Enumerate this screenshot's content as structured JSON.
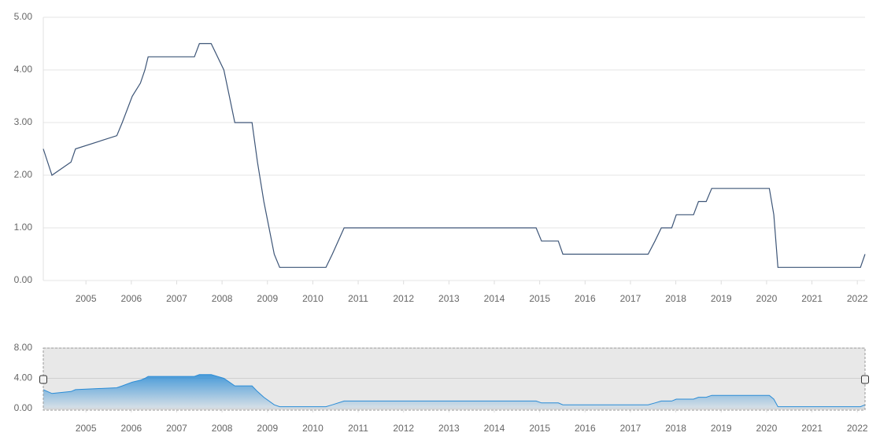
{
  "chart_data": {
    "type": "line",
    "x": [
      2004.06,
      2004.25,
      2004.67,
      2004.77,
      2005.68,
      2005.8,
      2006.02,
      2006.2,
      2006.3,
      2006.37,
      2007.39,
      2007.5,
      2007.76,
      2008.04,
      2008.16,
      2008.28,
      2008.66,
      2008.78,
      2008.92,
      2009.15,
      2009.27,
      2010.29,
      2010.43,
      2010.69,
      2014.92,
      2015.04,
      2015.41,
      2015.51,
      2017.39,
      2017.54,
      2017.68,
      2017.91,
      2018.01,
      2018.39,
      2018.5,
      2018.67,
      2018.79,
      2020.06,
      2020.16,
      2020.25,
      2022.07,
      2022.17
    ],
    "values": [
      2.5,
      2.0,
      2.25,
      2.5,
      2.75,
      3.0,
      3.5,
      3.75,
      4.0,
      4.25,
      4.25,
      4.5,
      4.5,
      4.0,
      3.5,
      3.0,
      3.0,
      2.25,
      1.5,
      0.5,
      0.25,
      0.25,
      0.5,
      1.0,
      1.0,
      0.75,
      0.75,
      0.5,
      0.5,
      0.75,
      1.0,
      1.0,
      1.25,
      1.25,
      1.5,
      1.5,
      1.75,
      1.75,
      1.25,
      0.25,
      0.25,
      0.5
    ],
    "color": "#3d5577",
    "xlim": [
      2004.06,
      2022.17
    ],
    "xticks": [
      2005,
      2006,
      2007,
      2008,
      2009,
      2010,
      2011,
      2012,
      2013,
      2014,
      2015,
      2016,
      2017,
      2018,
      2019,
      2020,
      2021,
      2022
    ],
    "ylim": [
      0,
      5
    ],
    "yticks": [
      {
        "value": 0,
        "label": "0.00"
      },
      {
        "value": 1,
        "label": "1.00"
      },
      {
        "value": 2,
        "label": "2.00"
      },
      {
        "value": 3,
        "label": "3.00"
      },
      {
        "value": 4,
        "label": "4.00"
      },
      {
        "value": 5,
        "label": "5.00"
      }
    ],
    "grid": true,
    "navigator": {
      "type": "area",
      "color": "#2b8cd6",
      "ylim": [
        0,
        8
      ],
      "yticks": [
        {
          "value": 0,
          "label": "0.00"
        },
        {
          "value": 4,
          "label": "4.00"
        },
        {
          "value": 8,
          "label": "8.00"
        }
      ]
    }
  }
}
